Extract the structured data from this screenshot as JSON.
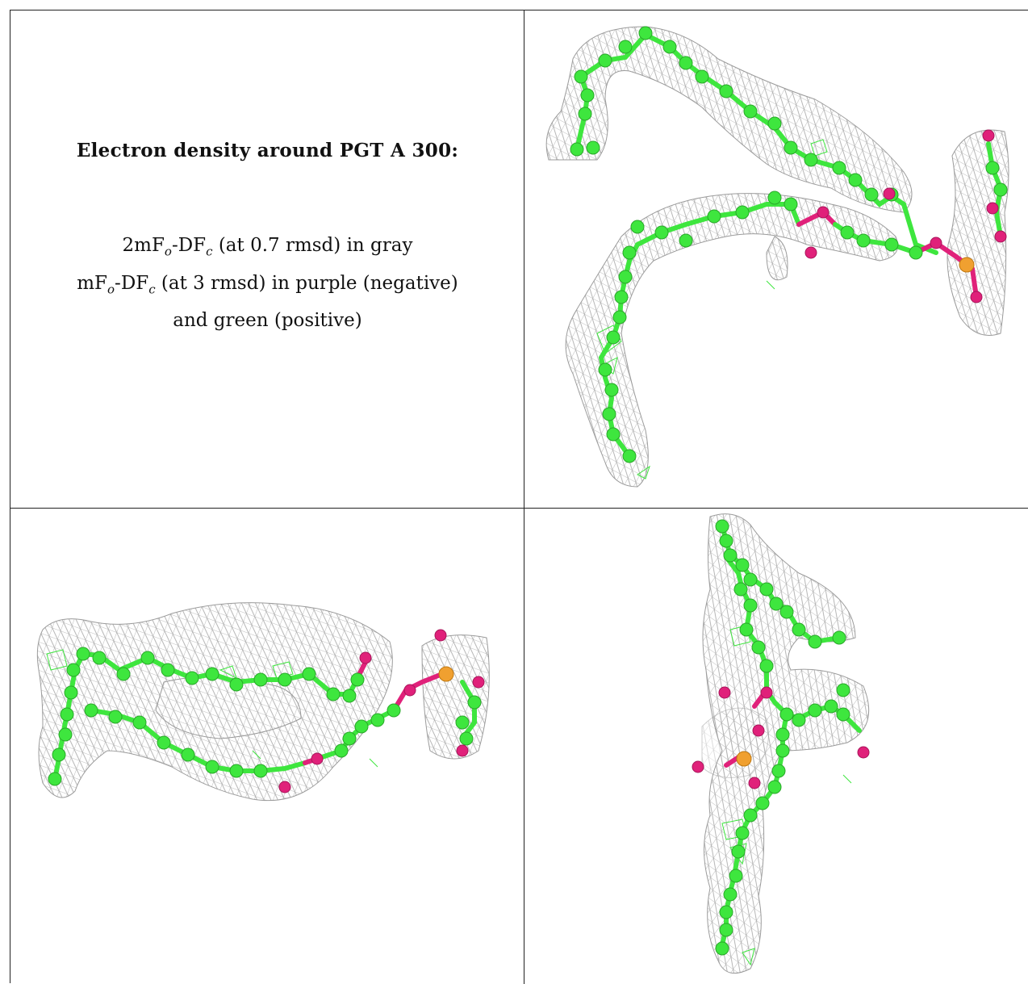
{
  "title": "Electron density around PGT A 300:",
  "legend": {
    "line1_pre": "2mF",
    "line1_sub1": "o",
    "line1_mid": "-DF",
    "line1_sub2": "c",
    "line1_post": " (at 0.7 rmsd) in gray",
    "line2_pre": "mF",
    "line2_sub1": "o",
    "line2_mid": "-DF",
    "line2_sub2": "c",
    "line2_post": " (at 3 rmsd) in purple (negative)",
    "line3": "and green (positive)"
  },
  "colors": {
    "carbon": "#3ee63e",
    "oxygen": "#e0217a",
    "phosphorus": "#f0a030",
    "mesh": "#9a9a9a",
    "border": "#222222"
  }
}
